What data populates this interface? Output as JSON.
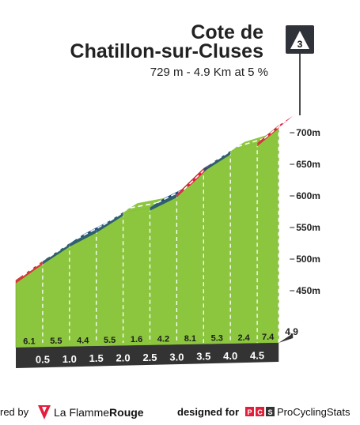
{
  "title": {
    "line1": "Cote de",
    "line2": "Chatillon-sur-Cluses",
    "subtitle": "729 m - 4.9 Km at 5 %"
  },
  "category": "3",
  "footer": {
    "powered_text": "red by",
    "brand_plain": "La Flamme",
    "brand_bold": "Rouge",
    "designed_text": "designed for",
    "pcs_name": "ProCyclingStats"
  },
  "colors": {
    "surface": "#8cc63f",
    "bedrock": "#b5ab9f",
    "km_bar": "#333333",
    "top_bands": {
      "red": "#e31e3c",
      "blue": "#1f4e79",
      "green": "#8cc63f"
    }
  },
  "chart_data": {
    "type": "area",
    "title": "Cote de Chatillon-sur-Cluses",
    "subtitle": "729 m - 4.9 Km at 5 %",
    "x": [
      0,
      0.5,
      1.0,
      1.5,
      2.0,
      2.5,
      3.0,
      3.5,
      4.0,
      4.5,
      4.9
    ],
    "altitude_m": [
      484,
      514,
      542,
      564,
      591,
      599,
      620,
      661,
      688,
      701,
      729
    ],
    "segment_gradients": [
      "6.1",
      "5.5",
      "4.4",
      "5.5",
      "1.6",
      "4.2",
      "8.1",
      "5.3",
      "2.4",
      "7.4"
    ],
    "segment_colors": [
      "red",
      "blue",
      "blue",
      "blue",
      "green",
      "blue",
      "red",
      "blue",
      "green",
      "red"
    ],
    "x_tick_labels": [
      "0.5",
      "1.0",
      "1.5",
      "2.0",
      "2.5",
      "3.0",
      "3.5",
      "4.0",
      "4.5",
      "4.9"
    ],
    "y_ticks": [
      450,
      500,
      550,
      600,
      650,
      700
    ],
    "y_tick_labels": [
      "450m",
      "500m",
      "550m",
      "600m",
      "650m",
      "700m"
    ],
    "ylim": [
      440,
      729
    ],
    "grid": false
  }
}
